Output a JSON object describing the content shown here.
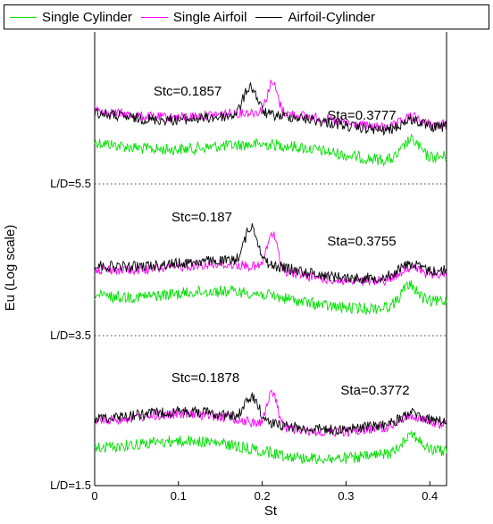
{
  "chart_data": {
    "type": "line",
    "title": "",
    "xlabel": "St",
    "ylabel": "Eu (Log scale)",
    "xlim": [
      0,
      0.42
    ],
    "x_ticks": [
      "0",
      "0.1",
      "0.2",
      "0.3",
      "0.4"
    ],
    "y_tick_labels": [
      "L/D=5.5",
      "L/D=3.5",
      "L/D=1.5"
    ],
    "y_scale": "log",
    "grid": "dotted reference lines at L/D offsets",
    "legend_position": "top",
    "series": [
      {
        "name": "Single Cylinder",
        "color": "#00e000"
      },
      {
        "name": "Single Airfoil",
        "color": "#ff00ff"
      },
      {
        "name": "Airfoil-Cylinder",
        "color": "#000000"
      }
    ],
    "panels": [
      {
        "label": "L/D=5.5",
        "stc_label": "Stc=0.1857",
        "stc": 0.1857,
        "sta_label": "Sta=0.3777",
        "sta": 0.3777
      },
      {
        "label": "L/D=3.5",
        "stc_label": "Stc=0.187",
        "stc": 0.187,
        "sta_label": "Sta=0.3755",
        "sta": 0.3755
      },
      {
        "label": "L/D=1.5",
        "stc_label": "Stc=0.1878",
        "stc": 0.1878,
        "sta_label": "Sta=0.3772",
        "sta": 0.3772
      }
    ]
  }
}
